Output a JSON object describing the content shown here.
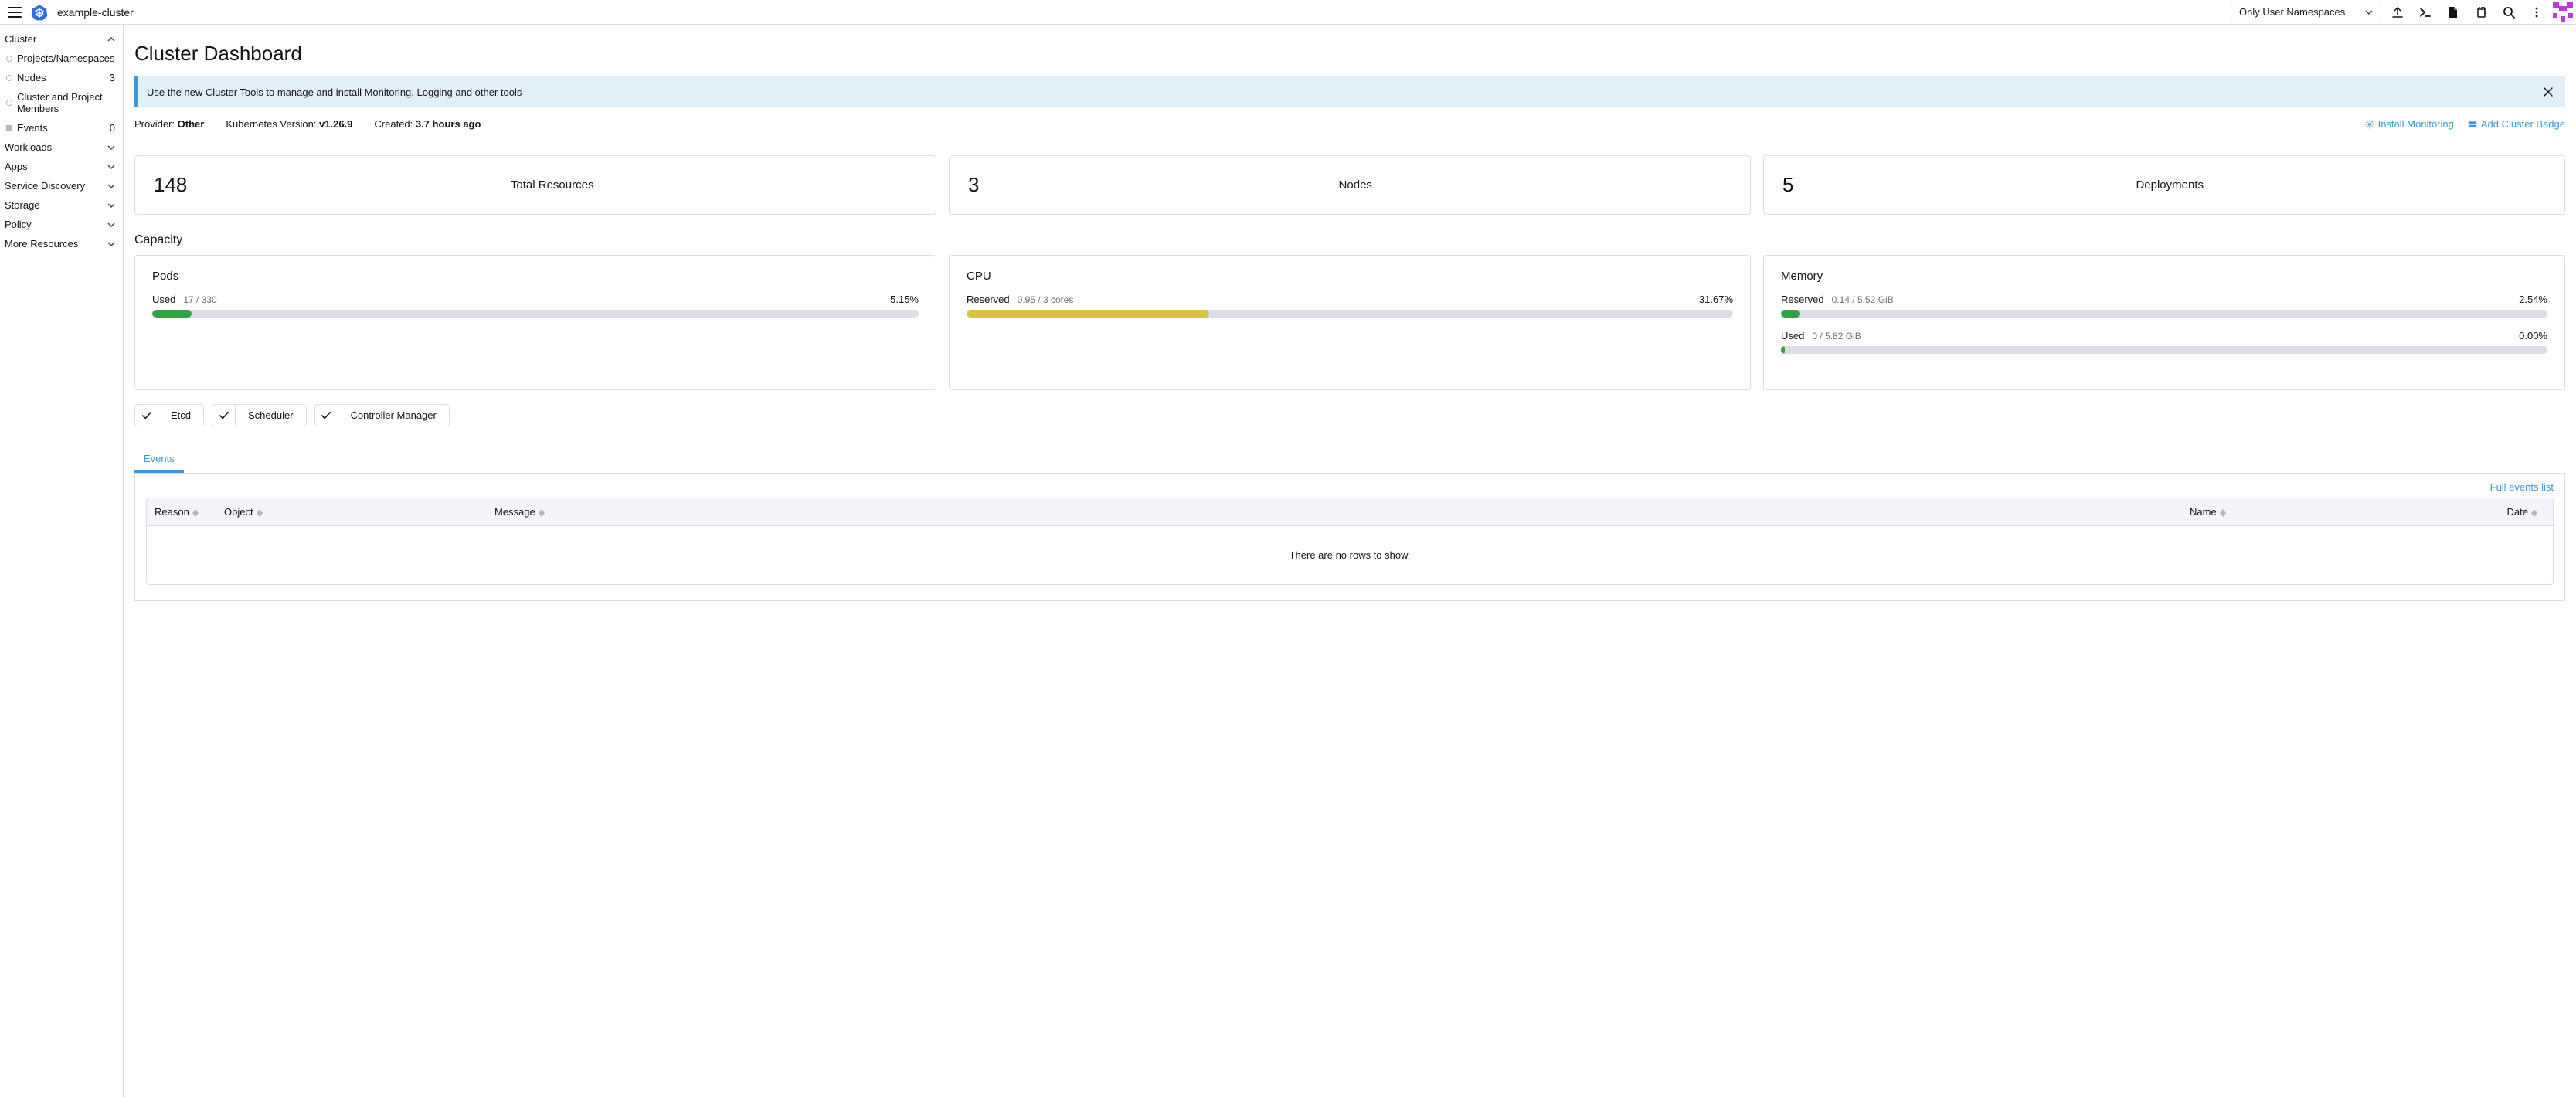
{
  "header": {
    "cluster_name": "example-cluster",
    "namespace_selector": "Only User Namespaces"
  },
  "sidebar": {
    "groups": [
      {
        "label": "Cluster",
        "expanded": true,
        "children": [
          {
            "label": "Projects/Namespaces",
            "icon": "dot"
          },
          {
            "label": "Nodes",
            "icon": "dot",
            "count": "3"
          },
          {
            "label": "Cluster and Project Members",
            "icon": "dot"
          },
          {
            "label": "Events",
            "icon": "sq",
            "count": "0"
          }
        ]
      },
      {
        "label": "Workloads",
        "expanded": false
      },
      {
        "label": "Apps",
        "expanded": false
      },
      {
        "label": "Service Discovery",
        "expanded": false
      },
      {
        "label": "Storage",
        "expanded": false
      },
      {
        "label": "Policy",
        "expanded": false
      },
      {
        "label": "More Resources",
        "expanded": false
      }
    ]
  },
  "page": {
    "title": "Cluster Dashboard",
    "banner": "Use the new Cluster Tools to manage and install Monitoring, Logging and other tools",
    "meta": {
      "provider_label": "Provider:",
      "provider": "Other",
      "kube_label": "Kubernetes Version:",
      "kube": "v1.26.9",
      "created_label": "Created:",
      "created": "3.7 hours ago"
    },
    "actions": {
      "install_monitoring": "Install Monitoring",
      "add_badge": "Add Cluster Badge"
    },
    "summary": [
      {
        "value": "148",
        "label": "Total Resources"
      },
      {
        "value": "3",
        "label": "Nodes"
      },
      {
        "value": "5",
        "label": "Deployments"
      }
    ],
    "capacity_title": "Capacity",
    "capacity": [
      {
        "title": "Pods",
        "metrics": [
          {
            "label": "Used",
            "detail": "17 / 330",
            "pct": "5.15%",
            "width": 5.15,
            "color": "#33a242"
          }
        ]
      },
      {
        "title": "CPU",
        "metrics": [
          {
            "label": "Reserved",
            "detail": "0.95 / 3 cores",
            "pct": "31.67%",
            "width": 31.67,
            "color": "#dac342"
          }
        ]
      },
      {
        "title": "Memory",
        "metrics": [
          {
            "label": "Reserved",
            "detail": "0.14 / 5.52 GiB",
            "pct": "2.54%",
            "width": 2.54,
            "color": "#33a242"
          },
          {
            "label": "Used",
            "detail": "0 / 5.82 GiB",
            "pct": "0.00%",
            "width": 0,
            "color": "#33a242"
          }
        ]
      }
    ],
    "health": [
      "Etcd",
      "Scheduler",
      "Controller Manager"
    ],
    "events_tab": "Events",
    "full_events_link": "Full events list",
    "table": {
      "columns": [
        "Reason",
        "Object",
        "Message",
        "Name",
        "Date"
      ],
      "empty": "There are no rows to show."
    }
  },
  "colors": {
    "link": "#3d98d3",
    "bar_bg": "#dcdee7"
  }
}
